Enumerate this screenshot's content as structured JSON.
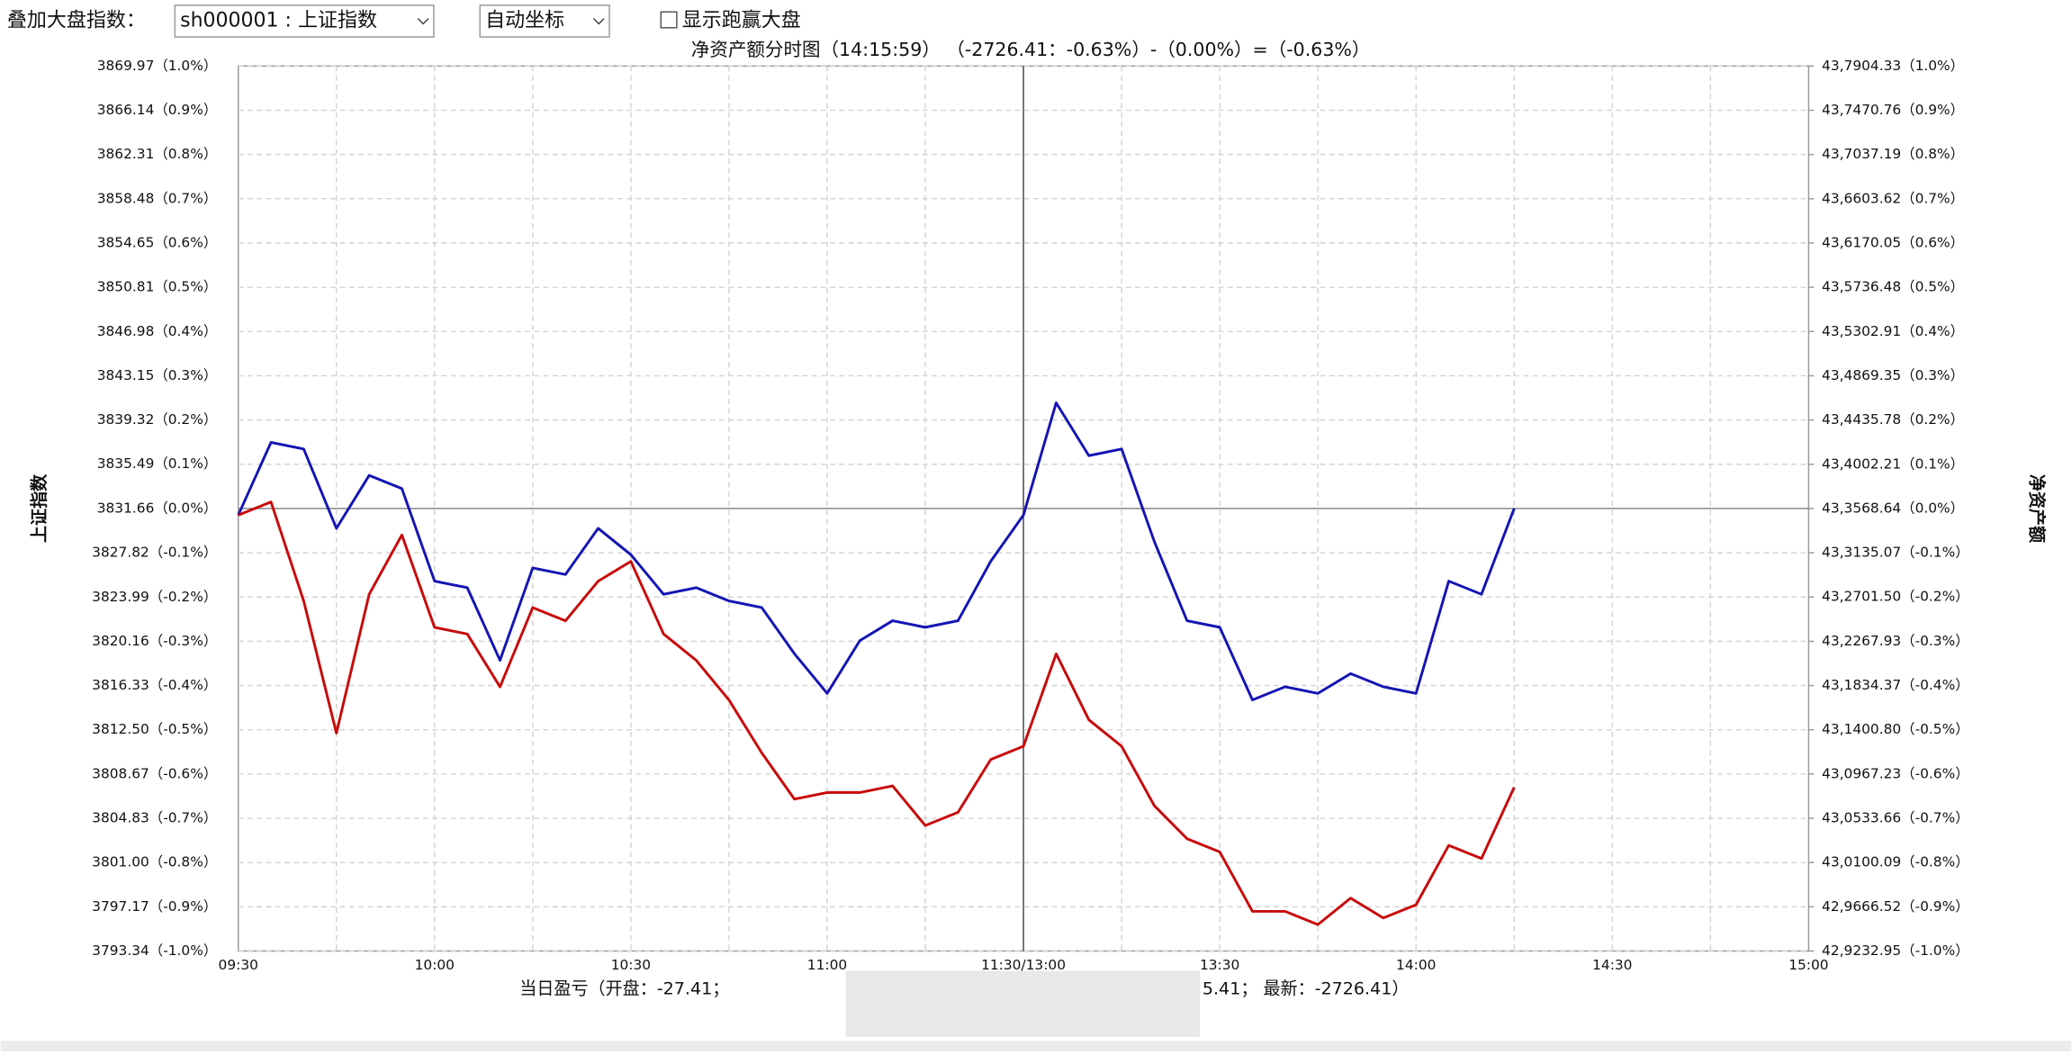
{
  "controls": {
    "overlay_label": "叠加大盘指数：",
    "index_select": "sh000001 : 上证指数",
    "axis_select": "自动坐标",
    "checkbox_label": "显示跑赢大盘"
  },
  "chart_data": {
    "type": "line",
    "title": "净资产额分时图（14:15:59） （-2726.41：-0.63%）-（0.00%）=（-0.63%）",
    "ylabel": "上证指数",
    "y2label": "净资产额",
    "footer_left": "当日盈亏（开盘：-27.41；",
    "footer_right": "5.41；  最新：-2726.41）",
    "categories": [
      "09:30",
      null,
      null,
      null,
      null,
      null,
      "10:00",
      null,
      null,
      null,
      null,
      null,
      "10:30",
      null,
      null,
      null,
      null,
      null,
      "11:00",
      null,
      null,
      null,
      null,
      null,
      "11:30/13:00",
      null,
      null,
      null,
      null,
      null,
      "13:30",
      null,
      null,
      null,
      null,
      null,
      "14:00",
      null,
      null,
      null,
      null,
      null,
      "14:30",
      null,
      null,
      null,
      null,
      null,
      "15:00"
    ],
    "ylim": [
      3793.34,
      3869.97
    ],
    "yticks": [
      {
        "value": 3793.34,
        "label": "3793.34（-1.0%）"
      },
      {
        "value": 3797.17,
        "label": "3797.17（-0.9%）"
      },
      {
        "value": 3801.0,
        "label": "3801.00（-0.8%）"
      },
      {
        "value": 3804.83,
        "label": "3804.83（-0.7%）"
      },
      {
        "value": 3808.67,
        "label": "3808.67（-0.6%）"
      },
      {
        "value": 3812.5,
        "label": "3812.50（-0.5%）"
      },
      {
        "value": 3816.33,
        "label": "3816.33（-0.4%）"
      },
      {
        "value": 3820.16,
        "label": "3820.16（-0.3%）"
      },
      {
        "value": 3823.99,
        "label": "3823.99（-0.2%）"
      },
      {
        "value": 3827.82,
        "label": "3827.82（-0.1%）"
      },
      {
        "value": 3831.66,
        "label": "3831.66（0.0%）"
      },
      {
        "value": 3835.49,
        "label": "3835.49（0.1%）"
      },
      {
        "value": 3839.32,
        "label": "3839.32（0.2%）"
      },
      {
        "value": 3843.15,
        "label": "3843.15（0.3%）"
      },
      {
        "value": 3846.98,
        "label": "3846.98（0.4%）"
      },
      {
        "value": 3850.81,
        "label": "3850.81（0.5%）"
      },
      {
        "value": 3854.65,
        "label": "3854.65（0.6%）"
      },
      {
        "value": 3858.48,
        "label": "3858.48（0.7%）"
      },
      {
        "value": 3862.31,
        "label": "3862.31（0.8%）"
      },
      {
        "value": 3866.14,
        "label": "3866.14（0.9%）"
      },
      {
        "value": 3869.97,
        "label": "3869.97（1.0%）"
      }
    ],
    "y2lim": [
      429232.95,
      437904.33
    ],
    "y2ticks": [
      {
        "value": 429232.95,
        "label": "42,9232.95（-1.0%）"
      },
      {
        "value": 429666.52,
        "label": "42,9666.52（-0.9%）"
      },
      {
        "value": 430100.09,
        "label": "43,0100.09（-0.8%）"
      },
      {
        "value": 430533.66,
        "label": "43,0533.66（-0.7%）"
      },
      {
        "value": 430967.23,
        "label": "43,0967.23（-0.6%）"
      },
      {
        "value": 431400.8,
        "label": "43,1400.80（-0.5%）"
      },
      {
        "value": 431834.37,
        "label": "43,1834.37（-0.4%）"
      },
      {
        "value": 432267.93,
        "label": "43,2267.93（-0.3%）"
      },
      {
        "value": 432701.5,
        "label": "43,2701.50（-0.2%）"
      },
      {
        "value": 433135.07,
        "label": "43,3135.07（-0.1%）"
      },
      {
        "value": 433568.64,
        "label": "43,3568.64（0.0%）"
      },
      {
        "value": 434002.21,
        "label": "43,4002.21（0.1%）"
      },
      {
        "value": 434435.78,
        "label": "43,4435.78（0.2%）"
      },
      {
        "value": 434869.35,
        "label": "43,4869.35（0.3%）"
      },
      {
        "value": 435302.91,
        "label": "43,5302.91（0.4%）"
      },
      {
        "value": 435736.48,
        "label": "43,5736.48（0.5%）"
      },
      {
        "value": 436170.05,
        "label": "43,6170.05（0.6%）"
      },
      {
        "value": 436603.62,
        "label": "43,6603.62（0.7%）"
      },
      {
        "value": 437037.19,
        "label": "43,7037.19（0.8%）"
      },
      {
        "value": 437470.76,
        "label": "43,7470.76（0.9%）"
      },
      {
        "value": 437904.33,
        "label": "43,7904.33（1.0%）"
      }
    ],
    "grid": true,
    "series": [
      {
        "color": "#1414b4",
        "values": [
          3831.09,
          3837.38,
          3836.81,
          3829.94,
          3834.52,
          3833.38,
          3825.37,
          3824.8,
          3818.51,
          3826.51,
          3825.94,
          3829.94,
          3827.66,
          3824.23,
          3824.8,
          3823.65,
          3823.08,
          3819.08,
          3815.65,
          3820.22,
          3821.94,
          3821.37,
          3821.94,
          3827.09,
          3831.09,
          3840.81,
          3836.23,
          3836.81,
          3828.8,
          3821.94,
          3821.37,
          3815.08,
          3816.22,
          3815.65,
          3817.36,
          3816.22,
          3815.65,
          3825.37,
          3824.23,
          3831.66,
          null,
          null,
          null,
          null,
          null,
          null,
          null,
          null,
          null
        ]
      },
      {
        "color": "#c80a0a",
        "axis": "y2",
        "values": [
          433503.93,
          433633.35,
          432662.7,
          431368.5,
          432727.41,
          433309.8,
          432403.86,
          432339.15,
          431821.47,
          432597.99,
          432468.57,
          432856.83,
          433050.96,
          432339.15,
          432080.31,
          431692.05,
          431174.37,
          430721.4,
          430786.11,
          430786.11,
          430850.82,
          430462.56,
          430591.98,
          431109.66,
          431239.08,
          432145.02,
          431497.92,
          431239.08,
          430656.69,
          430333.14,
          430203.72,
          429621.33,
          429621.33,
          429491.91,
          429750.75,
          429556.62,
          429686.04,
          430268.43,
          430139.01,
          430837.06,
          null,
          null,
          null,
          null,
          null,
          null,
          null,
          null,
          null
        ]
      }
    ]
  }
}
